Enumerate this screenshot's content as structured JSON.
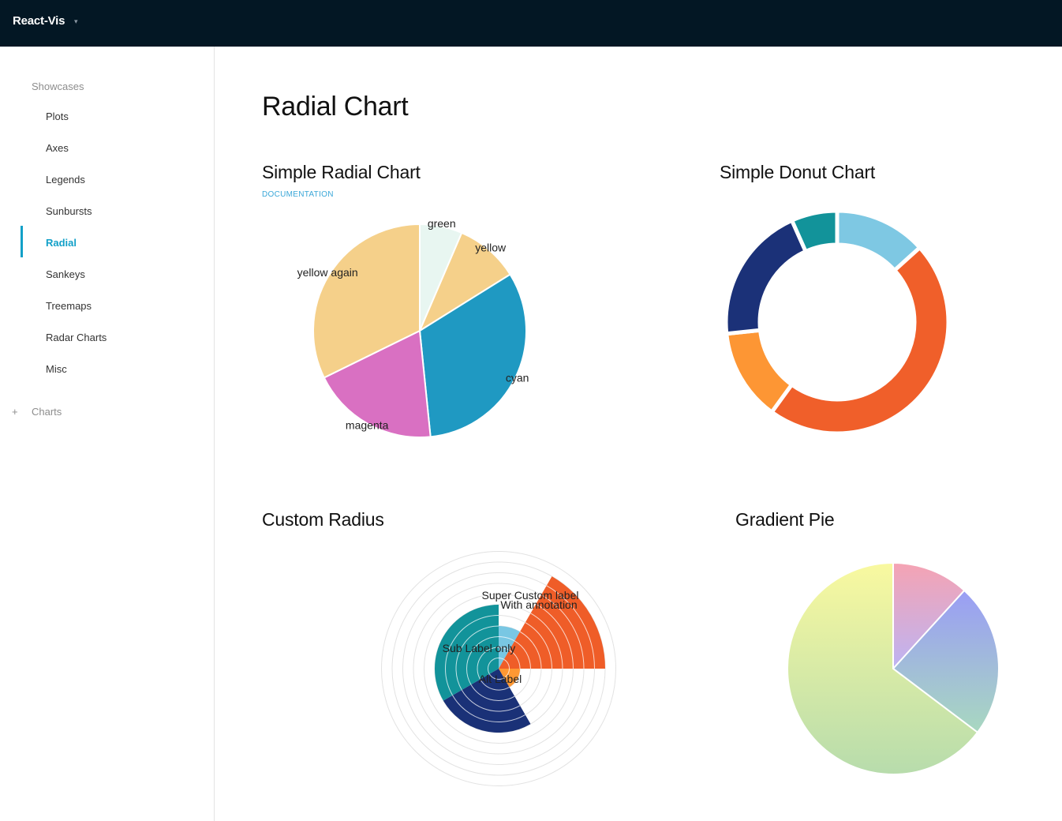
{
  "app": {
    "title": "React-Vis",
    "caret": "▾"
  },
  "sidebar": {
    "heading": "Showcases",
    "items": [
      {
        "label": "Plots"
      },
      {
        "label": "Axes"
      },
      {
        "label": "Legends"
      },
      {
        "label": "Sunbursts"
      },
      {
        "label": "Radial",
        "active": true
      },
      {
        "label": "Sankeys"
      },
      {
        "label": "Treemaps"
      },
      {
        "label": "Radar Charts"
      },
      {
        "label": "Misc"
      }
    ],
    "collapsed_icon": "+",
    "collapsed_label": "Charts"
  },
  "main": {
    "title": "Radial Chart",
    "documentation_link": "DOCUMENTATION",
    "sections": {
      "simple_radial": "Simple Radial Chart",
      "simple_donut": "Simple Donut Chart",
      "custom_radius": "Custom Radius",
      "gradient_pie": "Gradient Pie"
    }
  },
  "chart_data": [
    {
      "type": "pie",
      "title": "Simple Radial Chart",
      "slices": [
        {
          "label": "green",
          "value": 2,
          "color": "#e8f6f1"
        },
        {
          "label": "yellow",
          "value": 3,
          "color": "#f5d08a"
        },
        {
          "label": "cyan",
          "value": 10,
          "color": "#1f99c2"
        },
        {
          "label": "magenta",
          "value": 6,
          "color": "#d970c2"
        },
        {
          "label": "yellow again",
          "value": 10,
          "color": "#f5d08a"
        }
      ]
    },
    {
      "type": "pie",
      "title": "Simple Donut Chart",
      "slices": [
        {
          "value": 4,
          "color": "#7ec8e3"
        },
        {
          "value": 14,
          "color": "#f05f2a"
        },
        {
          "value": 4,
          "color": "#fd9634"
        },
        {
          "value": 6,
          "color": "#1b3178"
        },
        {
          "value": 2,
          "color": "#12939a"
        }
      ]
    },
    {
      "type": "pie",
      "title": "Custom Radius",
      "rings": 11,
      "slices": [
        {
          "value": 1,
          "radius": 4,
          "color": "#79c7e3"
        },
        {
          "value": 2,
          "radius": 10,
          "color": "#ef5d28",
          "label": "Super Custom label",
          "sublabel": "With annotation"
        },
        {
          "value": 2,
          "radius": 2,
          "color": "#ff9833",
          "label": "Alt Label"
        },
        {
          "value": 3,
          "radius": 6,
          "color": "#1a3177"
        },
        {
          "value": 4,
          "radius": 6,
          "color": "#12939a",
          "sublabel": "Sub Label only"
        }
      ]
    },
    {
      "type": "pie",
      "title": "Gradient Pie",
      "slices": [
        {
          "value": 2,
          "gradient": [
            "#f5a3b3",
            "#bdb4f3"
          ]
        },
        {
          "value": 4,
          "gradient": [
            "#9a9df5",
            "#a8d8c0"
          ]
        },
        {
          "value": 11,
          "gradient": [
            "#f9f9a0",
            "#b7dcac"
          ]
        }
      ]
    }
  ]
}
